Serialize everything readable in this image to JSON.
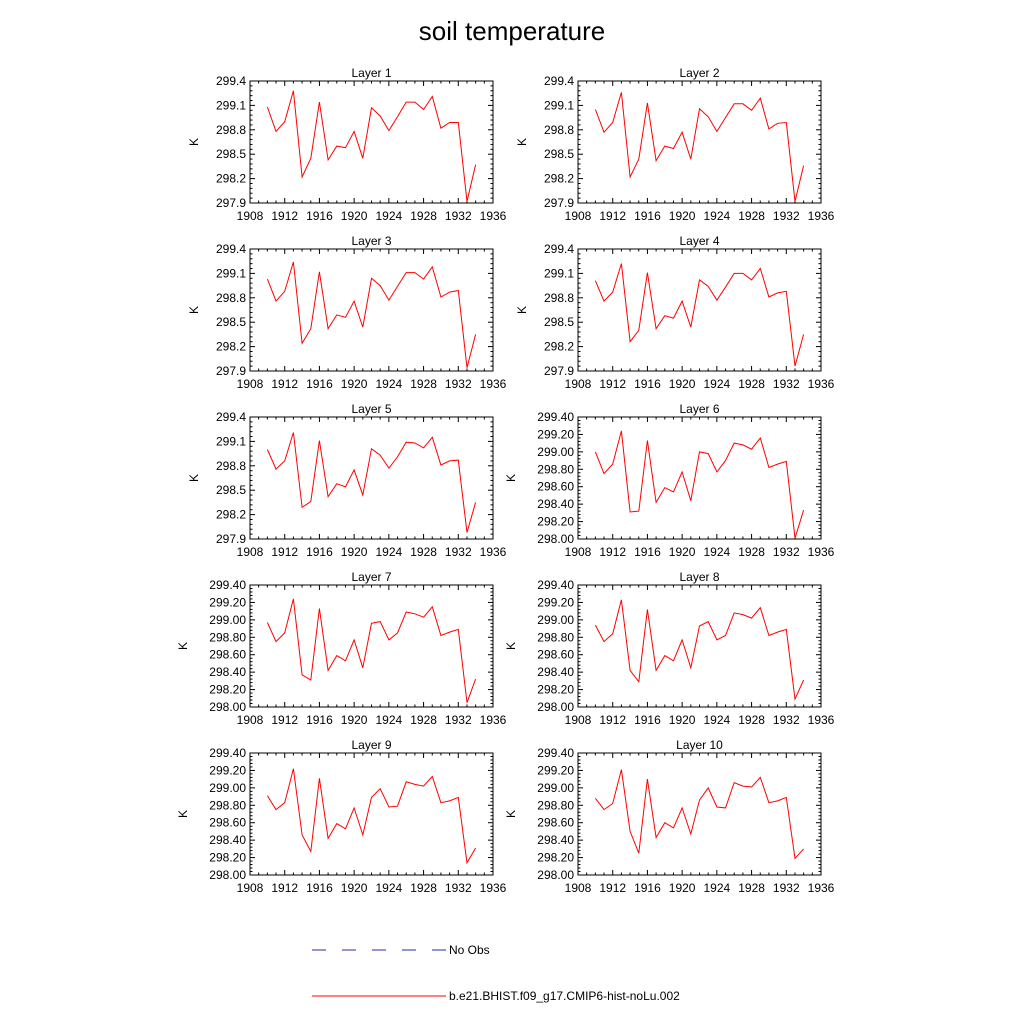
{
  "title": "soil temperature",
  "colors": {
    "model": "#ff0000",
    "obs": "#2a2aa6",
    "axis": "#000000"
  },
  "chart_data": {
    "type": "line",
    "xlabel": "",
    "ylabel": "K",
    "xlim": [
      1908,
      1936
    ],
    "xticks": [
      1908,
      1912,
      1916,
      1920,
      1924,
      1928,
      1932,
      1936
    ],
    "x": [
      1910,
      1911,
      1912,
      1913,
      1914,
      1915,
      1916,
      1917,
      1918,
      1919,
      1920,
      1921,
      1922,
      1923,
      1924,
      1925,
      1926,
      1927,
      1928,
      1929,
      1930,
      1931,
      1932,
      1933,
      1934
    ],
    "legend": [
      {
        "label": "No Obs",
        "style": "dashed",
        "color": "#2a2aa6"
      },
      {
        "label": "b.e21.BHIST.f09_g17.CMIP6-hist-noLu.002",
        "style": "solid",
        "color": "#ff0000"
      }
    ],
    "panels": [
      {
        "title": "Layer 1",
        "ylim": [
          297.9,
          299.4
        ],
        "yticks": [
          "299.4",
          "299.1",
          "298.8",
          "298.5",
          "298.2",
          "297.9"
        ],
        "values": [
          299.08,
          298.78,
          298.9,
          299.28,
          298.22,
          298.45,
          299.14,
          298.43,
          298.6,
          298.58,
          298.78,
          298.45,
          299.07,
          298.97,
          298.79,
          298.96,
          299.14,
          299.14,
          299.05,
          299.21,
          298.82,
          298.89,
          298.89,
          297.92,
          298.37
        ]
      },
      {
        "title": "Layer 2",
        "ylim": [
          297.9,
          299.4
        ],
        "yticks": [
          "299.4",
          "299.1",
          "298.8",
          "298.5",
          "298.2",
          "297.9"
        ],
        "values": [
          299.05,
          298.77,
          298.89,
          299.26,
          298.22,
          298.44,
          299.13,
          298.42,
          298.6,
          298.57,
          298.77,
          298.44,
          299.06,
          298.96,
          298.78,
          298.95,
          299.12,
          299.12,
          299.04,
          299.19,
          298.81,
          298.88,
          298.89,
          297.92,
          298.36
        ]
      },
      {
        "title": "Layer 3",
        "ylim": [
          297.9,
          299.4
        ],
        "yticks": [
          "299.4",
          "299.1",
          "298.8",
          "298.5",
          "298.2",
          "297.9"
        ],
        "values": [
          299.03,
          298.76,
          298.88,
          299.24,
          298.24,
          298.42,
          299.12,
          298.42,
          298.59,
          298.56,
          298.76,
          298.44,
          299.04,
          298.95,
          298.77,
          298.94,
          299.11,
          299.11,
          299.03,
          299.18,
          298.81,
          298.87,
          298.89,
          297.94,
          298.35
        ]
      },
      {
        "title": "Layer 4",
        "ylim": [
          297.9,
          299.4
        ],
        "yticks": [
          "299.4",
          "299.1",
          "298.8",
          "298.5",
          "298.2",
          "297.9"
        ],
        "values": [
          299.01,
          298.76,
          298.87,
          299.22,
          298.26,
          298.4,
          299.11,
          298.42,
          298.58,
          298.55,
          298.76,
          298.44,
          299.02,
          298.94,
          298.77,
          298.93,
          299.1,
          299.1,
          299.02,
          299.16,
          298.81,
          298.86,
          298.88,
          297.96,
          298.35
        ]
      },
      {
        "title": "Layer 5",
        "ylim": [
          297.9,
          299.4
        ],
        "yticks": [
          "299.4",
          "299.1",
          "298.8",
          "298.5",
          "298.2",
          "297.9"
        ],
        "values": [
          299.0,
          298.76,
          298.86,
          299.21,
          298.29,
          298.36,
          299.11,
          298.42,
          298.58,
          298.54,
          298.75,
          298.44,
          299.01,
          298.93,
          298.77,
          298.91,
          299.09,
          299.08,
          299.02,
          299.15,
          298.81,
          298.86,
          298.87,
          297.98,
          298.35
        ]
      },
      {
        "title": "Layer 6",
        "ylim": [
          298.0,
          299.4
        ],
        "yticks": [
          "299.40",
          "299.20",
          "299.00",
          "298.80",
          "298.60",
          "298.40",
          "298.20",
          "298.00"
        ],
        "values": [
          299.0,
          298.75,
          298.86,
          299.24,
          298.31,
          298.32,
          299.13,
          298.42,
          298.59,
          298.54,
          298.77,
          298.44,
          299.0,
          298.98,
          298.77,
          298.9,
          299.1,
          299.08,
          299.03,
          299.16,
          298.82,
          298.86,
          298.89,
          298.01,
          298.33
        ]
      },
      {
        "title": "Layer 7",
        "ylim": [
          298.0,
          299.4
        ],
        "yticks": [
          "299.40",
          "299.20",
          "299.00",
          "298.80",
          "298.60",
          "298.40",
          "298.20",
          "298.00"
        ],
        "values": [
          298.97,
          298.75,
          298.85,
          299.24,
          298.37,
          298.31,
          299.13,
          298.42,
          298.59,
          298.53,
          298.77,
          298.45,
          298.96,
          298.98,
          298.77,
          298.85,
          299.09,
          299.07,
          299.03,
          299.15,
          298.82,
          298.86,
          298.89,
          298.05,
          298.32
        ]
      },
      {
        "title": "Layer 8",
        "ylim": [
          298.0,
          299.4
        ],
        "yticks": [
          "299.40",
          "299.20",
          "299.00",
          "298.80",
          "298.60",
          "298.40",
          "298.20",
          "298.00"
        ],
        "values": [
          298.94,
          298.75,
          298.84,
          299.23,
          298.42,
          298.29,
          299.12,
          298.42,
          298.59,
          298.53,
          298.77,
          298.45,
          298.93,
          298.98,
          298.77,
          298.82,
          299.08,
          299.06,
          299.02,
          299.14,
          298.82,
          298.86,
          298.89,
          298.09,
          298.31
        ]
      },
      {
        "title": "Layer 9",
        "ylim": [
          298.0,
          299.4
        ],
        "yticks": [
          "299.40",
          "299.20",
          "299.00",
          "298.80",
          "298.60",
          "298.40",
          "298.20",
          "298.00"
        ],
        "values": [
          298.91,
          298.75,
          298.83,
          299.22,
          298.46,
          298.27,
          299.11,
          298.42,
          298.59,
          298.53,
          298.77,
          298.46,
          298.89,
          298.99,
          298.78,
          298.79,
          299.07,
          299.04,
          299.02,
          299.13,
          298.83,
          298.85,
          298.89,
          298.14,
          298.31
        ]
      },
      {
        "title": "Layer 10",
        "ylim": [
          298.0,
          299.4
        ],
        "yticks": [
          "299.40",
          "299.20",
          "299.00",
          "298.80",
          "298.60",
          "298.40",
          "298.20",
          "298.00"
        ],
        "values": [
          298.88,
          298.75,
          298.82,
          299.21,
          298.5,
          298.25,
          299.1,
          298.43,
          298.6,
          298.54,
          298.77,
          298.47,
          298.86,
          299.0,
          298.78,
          298.77,
          299.06,
          299.02,
          299.01,
          299.12,
          298.83,
          298.85,
          298.89,
          298.19,
          298.3
        ]
      }
    ]
  }
}
